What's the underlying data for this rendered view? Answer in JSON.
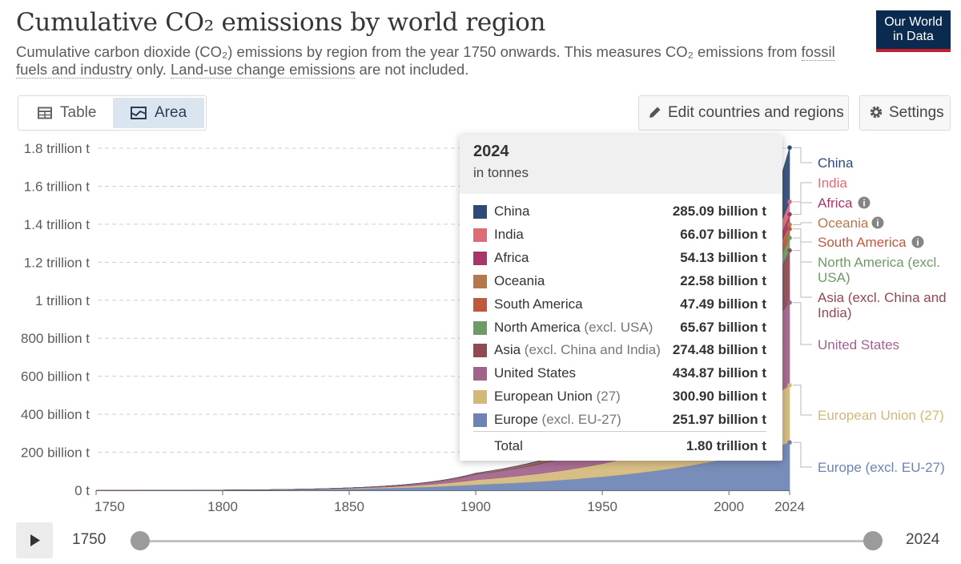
{
  "header": {
    "title": "Cumulative CO₂ emissions by world region",
    "subtitle_pre": "Cumulative carbon dioxide (CO₂) emissions by region from the year 1750 onwards. This measures CO₂ emissions from ",
    "subtitle_link1": "fossil fuels and industry",
    "subtitle_mid": " only. ",
    "subtitle_link2": "Land-use change emissions",
    "subtitle_post": " are not included.",
    "logo_line1": "Our World",
    "logo_line2": "in Data"
  },
  "controls": {
    "tab_table": "Table",
    "tab_area": "Area",
    "edit_label": "Edit countries and regions",
    "settings_label": "Settings"
  },
  "timeline": {
    "start": "1750",
    "end": "2024"
  },
  "tooltip": {
    "year": "2024",
    "unit": "in tonnes",
    "rows": [
      {
        "name": "China",
        "suffix": "",
        "value": "285.09 billion t"
      },
      {
        "name": "India",
        "suffix": "",
        "value": "66.07 billion t"
      },
      {
        "name": "Africa",
        "suffix": "",
        "value": "54.13 billion t"
      },
      {
        "name": "Oceania",
        "suffix": "",
        "value": "22.58 billion t"
      },
      {
        "name": "South America",
        "suffix": "",
        "value": "47.49 billion t"
      },
      {
        "name": "North America",
        "suffix": " (excl. USA)",
        "value": "65.67 billion t"
      },
      {
        "name": "Asia",
        "suffix": " (excl. China and India)",
        "value": "274.48 billion t"
      },
      {
        "name": "United States",
        "suffix": "",
        "value": "434.87 billion t"
      },
      {
        "name": "European Union",
        "suffix": " (27)",
        "value": "300.90 billion t"
      },
      {
        "name": "Europe",
        "suffix": " (excl. EU-27)",
        "value": "251.97 billion t"
      }
    ],
    "total_label": "Total",
    "total_value": "1.80 trillion t"
  },
  "chart_data": {
    "type": "area",
    "stacked": true,
    "x": [
      1750,
      1800,
      1850,
      1900,
      1950,
      2000,
      2024
    ],
    "ylim": [
      0,
      1800
    ],
    "y_unit": "billion t",
    "y_ticks": [
      0,
      200,
      400,
      600,
      800,
      1000,
      1200,
      1400,
      1600,
      1800
    ],
    "y_tick_labels": [
      "0 t",
      "200 billion t",
      "400 billion t",
      "600 billion t",
      "800 billion t",
      "1 trillion t",
      "1.2 trillion t",
      "1.4 trillion t",
      "1.6 trillion t",
      "1.8 trillion t"
    ],
    "x_ticks": [
      1750,
      1800,
      1850,
      1900,
      1950,
      2000,
      2024
    ],
    "x_tick_labels": [
      "1750",
      "1800",
      "1850",
      "1900",
      "1950",
      "2000",
      "2024"
    ],
    "grid": true,
    "series": [
      {
        "name": "Europe (excl. EU-27)",
        "color": "#6d83b3",
        "label": [
          "Europe (excl. EU-27)"
        ],
        "values": [
          0,
          0.9,
          8,
          30,
          72,
          170,
          251.97
        ]
      },
      {
        "name": "European Union (27)",
        "color": "#d4b87a",
        "label": [
          "European Union (27)"
        ],
        "values": [
          0,
          0.1,
          3,
          25,
          68,
          205,
          300.9
        ]
      },
      {
        "name": "United States",
        "color": "#a1628b",
        "label": [
          "United States"
        ],
        "values": [
          0,
          0,
          1.5,
          28,
          90,
          300,
          434.87
        ]
      },
      {
        "name": "Asia (excl. China and India)",
        "color": "#8f4a52",
        "label": [
          "Asia (excl. China and",
          "India)"
        ],
        "values": [
          0,
          0,
          0.2,
          3,
          14,
          110,
          274.48
        ]
      },
      {
        "name": "North America (excl. USA)",
        "color": "#6f9a66",
        "label": [
          "North America (excl.",
          "USA)"
        ],
        "values": [
          0,
          0,
          0.1,
          1.5,
          7,
          35,
          65.67
        ]
      },
      {
        "name": "South America",
        "color": "#c0583c",
        "label": [
          "South America"
        ],
        "values": [
          0,
          0,
          0,
          0.5,
          4,
          28,
          47.49
        ]
      },
      {
        "name": "Oceania",
        "color": "#b4784a",
        "label": [
          "Oceania"
        ],
        "values": [
          0,
          0,
          0,
          0.8,
          3,
          13,
          22.58
        ]
      },
      {
        "name": "Africa",
        "color": "#a63766",
        "label": [
          "Africa"
        ],
        "values": [
          0,
          0,
          0,
          0.5,
          3,
          31,
          54.13
        ]
      },
      {
        "name": "India",
        "color": "#e06b78",
        "label": [
          "India"
        ],
        "values": [
          0,
          0,
          0,
          0.5,
          4,
          30,
          66.07
        ]
      },
      {
        "name": "China",
        "color": "#2f4a78",
        "label": [
          "China"
        ],
        "values": [
          0,
          0,
          0,
          0.2,
          3,
          90,
          285.09
        ]
      }
    ]
  },
  "colors": {
    "China": "#2f4a78",
    "India": "#e06b78",
    "Africa": "#a63766",
    "Oceania": "#b4784a",
    "South America": "#c0583c",
    "North America (excl. USA)": "#6f9a66",
    "Asia (excl. China and India)": "#8f4a52",
    "United States": "#a1628b",
    "European Union (27)": "#d4b87a",
    "Europe (excl. EU-27)": "#6d83b3"
  }
}
